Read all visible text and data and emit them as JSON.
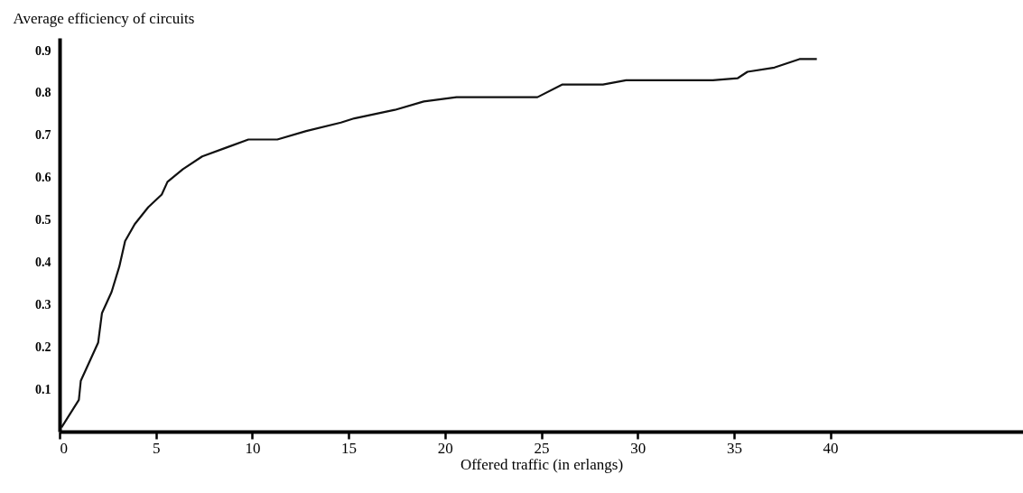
{
  "chart_data": {
    "type": "line",
    "xlabel": "Offered traffic (in erlangs)",
    "ylabel": "Average efficiency of circuits",
    "x": [
      0.1,
      1.0,
      1.1,
      1.5,
      2.0,
      2.2,
      2.7,
      3.1,
      3.4,
      3.9,
      4.6,
      5.3,
      5.6,
      6.4,
      7.4,
      8.6,
      9.8,
      11.3,
      12.8,
      14.6,
      15.3,
      17.4,
      18.9,
      20.6,
      24.8,
      26.1,
      28.2,
      29.4,
      33.9,
      35.2,
      35.7,
      37.1,
      38.4,
      39.3
    ],
    "series": [
      {
        "color": "#111111",
        "values": [
          0.01,
          0.075,
          0.12,
          0.16,
          0.21,
          0.28,
          0.33,
          0.39,
          0.45,
          0.49,
          0.53,
          0.56,
          0.59,
          0.62,
          0.65,
          0.67,
          0.69,
          0.69,
          0.71,
          0.73,
          0.74,
          0.76,
          0.78,
          0.79,
          0.79,
          0.82,
          0.82,
          0.83,
          0.83,
          0.835,
          0.85,
          0.86,
          0.88,
          0.88
        ]
      }
    ],
    "xlim": [
      0,
      50
    ],
    "xticks": [
      0,
      5,
      10,
      15,
      20,
      25,
      30,
      35,
      40
    ],
    "ylim": [
      0,
      0.93
    ],
    "yticks": [
      0.1,
      0.2,
      0.3,
      0.4,
      0.5,
      0.6,
      0.7,
      0.8,
      0.9
    ]
  }
}
